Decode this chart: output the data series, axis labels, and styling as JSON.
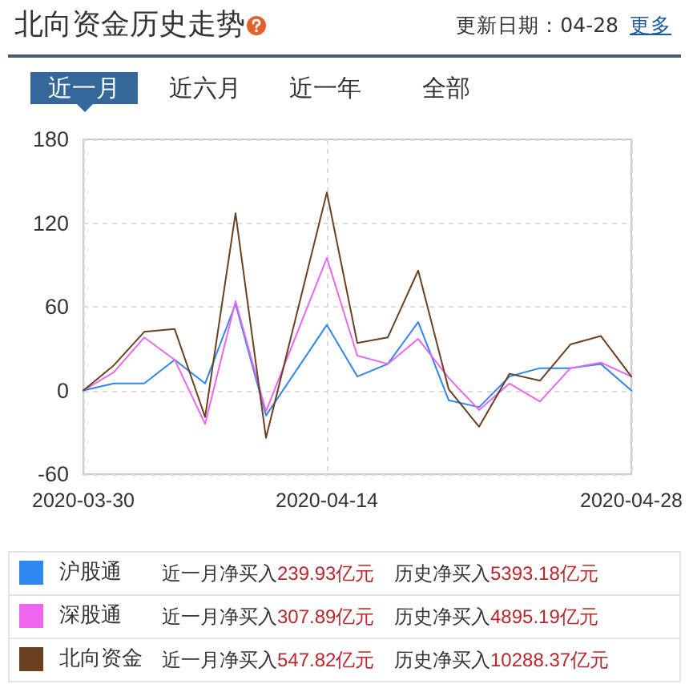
{
  "chart_data": {
    "type": "line",
    "title": "北向资金历史走势",
    "subtitle": "更新日期：04-28",
    "categories": [
      "2020-03-30",
      null,
      null,
      null,
      null,
      null,
      null,
      null,
      "2020-04-14",
      null,
      null,
      null,
      null,
      null,
      null,
      null,
      null,
      null,
      "2020-04-28"
    ],
    "series": [
      {
        "name": "沪股通",
        "color": "#2f86ee",
        "values": [
          0,
          5,
          5,
          22,
          5,
          62,
          -18,
          null,
          47,
          10,
          19,
          49,
          -7,
          -12,
          10,
          16,
          16,
          19,
          0
        ]
      },
      {
        "name": "深股通",
        "color": "#ee66ee",
        "values": [
          0,
          13,
          38,
          22,
          -24,
          64,
          -15,
          null,
          95,
          25,
          19,
          37,
          9,
          -14,
          5,
          -8,
          16,
          20,
          10
        ]
      },
      {
        "name": "北向资金",
        "color": "#6b4020",
        "values": [
          0,
          18,
          42,
          44,
          -19,
          127,
          -34,
          null,
          142,
          34,
          38,
          86,
          1,
          -26,
          12,
          7,
          33,
          39,
          10
        ]
      }
    ],
    "ylim": [
      -60,
      180
    ],
    "yticks": [
      -60,
      0,
      60,
      120,
      180
    ],
    "grid": true,
    "legend": "bottom",
    "marker": "none",
    "annotations": [
      "更多",
      "近一月",
      "近六月",
      "近一年",
      "全部",
      "近一月净买入239.93亿元",
      "历史净买入5393.18亿元",
      "近一月净买入307.89亿元",
      "历史净买入4895.19亿元",
      "近一月净买入547.82亿元",
      "历史净买入10288.37亿元"
    ]
  }
}
